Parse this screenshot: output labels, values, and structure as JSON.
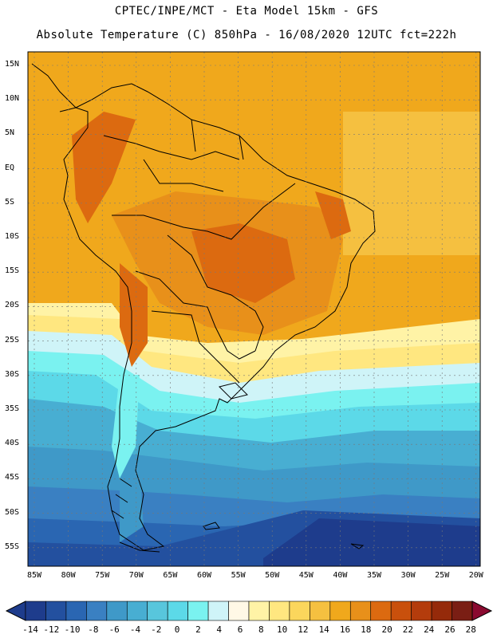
{
  "title": {
    "line1": "CPTEC/INPE/MCT -  Eta Model 15km - GFS",
    "line2": "Absolute Temperature (C) 850hPa - 16/08/2020 12UTC fct=222h"
  },
  "map": {
    "region": "South America",
    "lat_labels": [
      "15N",
      "10N",
      "5N",
      "EQ",
      "5S",
      "10S",
      "15S",
      "20S",
      "25S",
      "30S",
      "35S",
      "40S",
      "45S",
      "50S",
      "55S"
    ],
    "lon_labels": [
      "85W",
      "80W",
      "75W",
      "70W",
      "65W",
      "60W",
      "55W",
      "50W",
      "45W",
      "40W",
      "35W",
      "30W",
      "25W",
      "20W"
    ]
  },
  "colorbar": {
    "labels": [
      "-14",
      "-12",
      "-10",
      "-8",
      "-6",
      "-4",
      "-2",
      "0",
      "2",
      "4",
      "6",
      "8",
      "10",
      "12",
      "14",
      "16",
      "18",
      "20",
      "22",
      "24",
      "26",
      "28"
    ],
    "colors": [
      "#1e3c8c",
      "#23509f",
      "#2a66b2",
      "#3a80c2",
      "#3f99c8",
      "#48aed2",
      "#58c6dc",
      "#5cd9e8",
      "#7af2f0",
      "#cff4f8",
      "#fff8e6",
      "#fff3a6",
      "#ffe780",
      "#fbd65c",
      "#f5c040",
      "#f0a81c",
      "#e8901a",
      "#dc6a10",
      "#c9500c",
      "#b43c0c",
      "#952a0a",
      "#7a1e14"
    ]
  }
}
